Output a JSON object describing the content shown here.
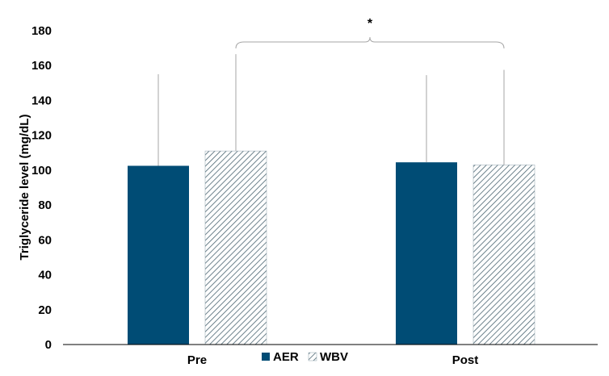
{
  "chart_data": {
    "type": "bar",
    "title": "",
    "xlabel": "",
    "ylabel": "Triglyceride level (mg/dL)",
    "ylim": [
      0,
      180
    ],
    "yticks": [
      0,
      20,
      40,
      60,
      80,
      100,
      120,
      140,
      160,
      180
    ],
    "grid": false,
    "legend_position": "bottom",
    "categories": [
      "Pre",
      "Post"
    ],
    "series": [
      {
        "name": "AER",
        "values": [
          102.5,
          104.5
        ],
        "error_upper": [
          52.5,
          50
        ],
        "color": "#004c75",
        "pattern": "solid"
      },
      {
        "name": "WBV",
        "values": [
          111,
          103
        ],
        "error_upper": [
          55.5,
          54.5
        ],
        "color": "#ffffff",
        "pattern": "diagonal-hatch"
      }
    ],
    "annotation": {
      "text": "*",
      "type": "bracket",
      "between": [
        "WBV Pre",
        "WBV Post"
      ]
    }
  }
}
